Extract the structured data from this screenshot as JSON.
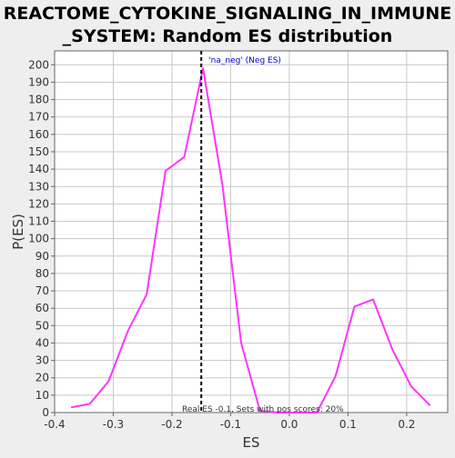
{
  "chart_data": {
    "type": "line",
    "title_lines": [
      "REACTOME_CYTOKINE_SIGNALING_IN_IMMUNE",
      "_SYSTEM: Random ES distribution"
    ],
    "xlabel": "ES",
    "ylabel": "P(ES)",
    "xlim": [
      -0.4,
      0.27
    ],
    "ylim": [
      0,
      208
    ],
    "x_ticks": [
      -0.4,
      -0.3,
      -0.2,
      -0.1,
      0.0,
      0.1,
      0.2
    ],
    "x_tick_labels": [
      "-0.4",
      "-0.3",
      "-0.2",
      "-0.1",
      "0.0",
      "0.1",
      "0.2"
    ],
    "y_ticks": [
      0,
      10,
      20,
      30,
      40,
      50,
      60,
      70,
      80,
      90,
      100,
      110,
      120,
      130,
      140,
      150,
      160,
      170,
      180,
      190,
      200
    ],
    "y_tick_labels": [
      "0",
      "10",
      "20",
      "30",
      "40",
      "50",
      "60",
      "70",
      "80",
      "90",
      "100",
      "110",
      "120",
      "130",
      "140",
      "150",
      "160",
      "170",
      "180",
      "190",
      "200"
    ],
    "series": [
      {
        "color": "#ff33ff",
        "x": [
          -0.372,
          -0.34,
          -0.308,
          -0.275,
          -0.243,
          -0.211,
          -0.179,
          -0.147,
          -0.114,
          -0.082,
          -0.05,
          -0.018,
          0.015,
          0.047,
          0.079,
          0.111,
          0.143,
          0.176,
          0.208,
          0.24
        ],
        "y": [
          3,
          5,
          18,
          47,
          68,
          139,
          147,
          198,
          131,
          40,
          1,
          0,
          0,
          0,
          21,
          61,
          65,
          36,
          15,
          4
        ]
      }
    ],
    "marker": {
      "x": -0.15,
      "label": "'na_neg' (Neg ES)",
      "label_color": "#0000cc",
      "line_color": "#000000"
    },
    "annotation": "Real ES -0.1, Sets with pos scores: 20%",
    "colors": {
      "background": "#eeeeee",
      "plot_background": "#ffffff",
      "grid": "#c8c8c8",
      "axis": "#666666"
    },
    "grid": true
  }
}
